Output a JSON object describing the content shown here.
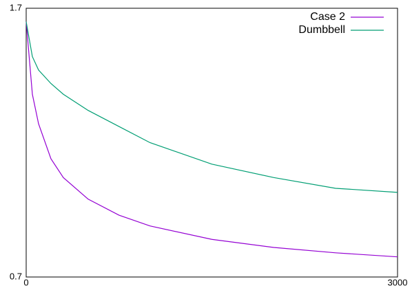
{
  "chart_data": {
    "type": "line",
    "x": [
      0,
      50,
      100,
      200,
      300,
      500,
      750,
      1000,
      1500,
      2000,
      2500,
      3000
    ],
    "series": [
      {
        "name": "Case 2",
        "color": "#9400d3",
        "values": [
          1.65,
          1.38,
          1.27,
          1.14,
          1.07,
          0.99,
          0.93,
          0.89,
          0.84,
          0.81,
          0.79,
          0.775
        ]
      },
      {
        "name": "Dumbbell",
        "color": "#009e73",
        "values": [
          1.65,
          1.52,
          1.47,
          1.42,
          1.38,
          1.32,
          1.26,
          1.2,
          1.12,
          1.07,
          1.03,
          1.015
        ]
      }
    ],
    "xlim": [
      0,
      3000
    ],
    "xticks": [
      0,
      3000
    ],
    "ylim": [
      0.7,
      1.7
    ],
    "yticks": [
      0.7,
      1.7
    ],
    "legend": "top-right"
  }
}
